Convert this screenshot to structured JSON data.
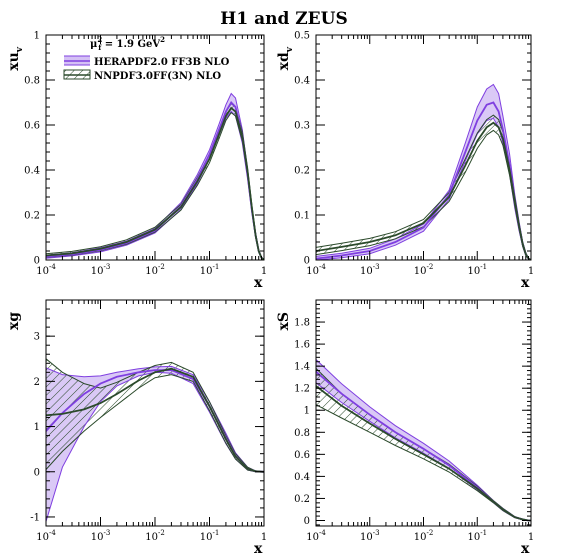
{
  "figure": {
    "title": "H1 and ZEUS",
    "scale_label": "μ",
    "scale_sub": "f",
    "scale_sup": "2",
    "scale_value": " = 1.9 GeV",
    "scale_value_sup": "2",
    "legend": [
      "HERAPDF2.0 FF3B NLO",
      "NNPDF3.0FF(3N) NLO"
    ],
    "colors": {
      "hera_line": "#7f3fe0",
      "hera_fill": "#d4c0f5",
      "nnpdf_line": "#2b4a2b",
      "nnpdf_hatch": "#2b4a2b"
    }
  },
  "chart_data": [
    {
      "type": "line",
      "ylabel": "xu",
      "ylabel_sub": "v",
      "xlabel": "x",
      "xscale": "log",
      "xlim": [
        0.0001,
        1
      ],
      "ylim": [
        0,
        1
      ],
      "xticks": [
        "10",
        "10",
        "10",
        "10",
        "1"
      ],
      "xtick_exps": [
        "-4",
        "-3",
        "-2",
        "-1",
        ""
      ],
      "yticks": [
        "0",
        "0.2",
        "0.4",
        "0.6",
        "0.8",
        "1"
      ],
      "x": [
        0.0001,
        0.0003,
        0.001,
        0.003,
        0.01,
        0.03,
        0.06,
        0.1,
        0.15,
        0.2,
        0.25,
        0.3,
        0.4,
        0.5,
        0.6,
        0.7,
        0.8,
        0.9,
        1.0
      ],
      "series": [
        {
          "name": "HERAPDF2.0 FF3B NLO",
          "center": [
            0.015,
            0.025,
            0.045,
            0.075,
            0.13,
            0.24,
            0.36,
            0.47,
            0.58,
            0.66,
            0.7,
            0.68,
            0.55,
            0.38,
            0.22,
            0.11,
            0.04,
            0.01,
            0.0
          ],
          "lo": [
            0.008,
            0.018,
            0.036,
            0.066,
            0.12,
            0.225,
            0.34,
            0.45,
            0.555,
            0.63,
            0.66,
            0.64,
            0.52,
            0.36,
            0.21,
            0.1,
            0.035,
            0.008,
            0.0
          ],
          "hi": [
            0.022,
            0.032,
            0.054,
            0.084,
            0.14,
            0.255,
            0.38,
            0.49,
            0.605,
            0.69,
            0.74,
            0.72,
            0.58,
            0.4,
            0.235,
            0.12,
            0.045,
            0.012,
            0.0
          ]
        },
        {
          "name": "NNPDF3.0FF(3N) NLO",
          "center": [
            0.02,
            0.03,
            0.05,
            0.08,
            0.135,
            0.235,
            0.35,
            0.45,
            0.56,
            0.64,
            0.675,
            0.66,
            0.55,
            0.39,
            0.23,
            0.11,
            0.04,
            0.01,
            0.0
          ],
          "lo": [
            0.012,
            0.022,
            0.041,
            0.07,
            0.124,
            0.222,
            0.332,
            0.432,
            0.54,
            0.62,
            0.655,
            0.64,
            0.53,
            0.37,
            0.215,
            0.1,
            0.035,
            0.008,
            0.0
          ],
          "hi": [
            0.028,
            0.038,
            0.059,
            0.09,
            0.146,
            0.248,
            0.368,
            0.468,
            0.58,
            0.66,
            0.695,
            0.68,
            0.57,
            0.41,
            0.245,
            0.12,
            0.045,
            0.012,
            0.0
          ]
        }
      ]
    },
    {
      "type": "line",
      "ylabel": "xd",
      "ylabel_sub": "v",
      "xlabel": "x",
      "xscale": "log",
      "xlim": [
        0.0001,
        1
      ],
      "ylim": [
        0,
        0.5
      ],
      "xticks": [
        "10",
        "10",
        "10",
        "10",
        "1"
      ],
      "xtick_exps": [
        "-4",
        "-3",
        "-2",
        "-1",
        ""
      ],
      "yticks": [
        "0",
        "0.1",
        "0.2",
        "0.3",
        "0.4",
        "0.5"
      ],
      "x": [
        0.0001,
        0.0003,
        0.001,
        0.003,
        0.01,
        0.03,
        0.06,
        0.1,
        0.15,
        0.2,
        0.25,
        0.3,
        0.4,
        0.5,
        0.6,
        0.7,
        0.8,
        0.9,
        1.0
      ],
      "series": [
        {
          "name": "HERAPDF2.0 FF3B NLO",
          "center": [
            0.003,
            0.01,
            0.02,
            0.04,
            0.072,
            0.145,
            0.24,
            0.31,
            0.345,
            0.35,
            0.33,
            0.29,
            0.21,
            0.13,
            0.075,
            0.035,
            0.013,
            0.003,
            0.0
          ],
          "lo": [
            0.0,
            0.005,
            0.014,
            0.033,
            0.064,
            0.135,
            0.22,
            0.28,
            0.31,
            0.315,
            0.295,
            0.26,
            0.19,
            0.115,
            0.065,
            0.03,
            0.01,
            0.002,
            0.0
          ],
          "hi": [
            0.008,
            0.015,
            0.026,
            0.047,
            0.08,
            0.155,
            0.26,
            0.34,
            0.38,
            0.39,
            0.37,
            0.32,
            0.235,
            0.145,
            0.085,
            0.04,
            0.016,
            0.004,
            0.0
          ]
        },
        {
          "name": "NNPDF3.0FF(3N) NLO",
          "center": [
            0.02,
            0.029,
            0.04,
            0.055,
            0.082,
            0.14,
            0.21,
            0.265,
            0.295,
            0.305,
            0.295,
            0.27,
            0.2,
            0.13,
            0.075,
            0.035,
            0.013,
            0.003,
            0.0
          ],
          "lo": [
            0.012,
            0.021,
            0.032,
            0.047,
            0.074,
            0.13,
            0.195,
            0.248,
            0.278,
            0.288,
            0.278,
            0.255,
            0.188,
            0.12,
            0.068,
            0.03,
            0.01,
            0.002,
            0.0
          ],
          "hi": [
            0.028,
            0.037,
            0.048,
            0.063,
            0.09,
            0.15,
            0.225,
            0.282,
            0.312,
            0.322,
            0.312,
            0.285,
            0.212,
            0.14,
            0.082,
            0.04,
            0.016,
            0.004,
            0.0
          ]
        }
      ]
    },
    {
      "type": "line",
      "ylabel": "xg",
      "ylabel_sub": "",
      "xlabel": "x",
      "xscale": "log",
      "xlim": [
        0.0001,
        1
      ],
      "ylim": [
        -1.2,
        3.8
      ],
      "xticks": [
        "10",
        "10",
        "10",
        "10",
        "1"
      ],
      "xtick_exps": [
        "-4",
        "-3",
        "-2",
        "-1",
        ""
      ],
      "yticks": [
        "-1",
        "0",
        "1",
        "2",
        "3"
      ],
      "x": [
        0.0001,
        0.0002,
        0.0005,
        0.001,
        0.002,
        0.005,
        0.01,
        0.02,
        0.05,
        0.1,
        0.2,
        0.3,
        0.5,
        0.7,
        1.0
      ],
      "series": [
        {
          "name": "HERAPDF2.0 FF3B NLO",
          "center": [
            0.9,
            1.3,
            1.72,
            1.95,
            2.1,
            2.2,
            2.25,
            2.25,
            2.05,
            1.45,
            0.75,
            0.35,
            0.07,
            0.01,
            0.0
          ],
          "lo": [
            -1.1,
            0.1,
            1.0,
            1.55,
            1.9,
            2.12,
            2.2,
            2.18,
            1.95,
            1.32,
            0.62,
            0.28,
            0.04,
            0.0,
            0.0
          ],
          "hi": [
            2.3,
            2.15,
            2.1,
            2.12,
            2.2,
            2.28,
            2.32,
            2.33,
            2.15,
            1.55,
            0.85,
            0.42,
            0.1,
            0.02,
            0.0
          ]
        },
        {
          "name": "NNPDF3.0FF(3N) NLO",
          "center": [
            1.25,
            1.28,
            1.38,
            1.52,
            1.72,
            2.02,
            2.2,
            2.28,
            2.1,
            1.45,
            0.72,
            0.34,
            0.07,
            0.01,
            0.0
          ],
          "lo": [
            0.05,
            0.45,
            0.9,
            1.2,
            1.48,
            1.85,
            2.08,
            2.15,
            2.0,
            1.35,
            0.63,
            0.28,
            0.04,
            0.0,
            0.0
          ],
          "hi": [
            2.5,
            2.2,
            1.95,
            1.85,
            1.98,
            2.2,
            2.35,
            2.42,
            2.2,
            1.55,
            0.8,
            0.4,
            0.1,
            0.02,
            0.0
          ]
        }
      ]
    },
    {
      "type": "line",
      "ylabel": "xS",
      "ylabel_sub": "",
      "xlabel": "x",
      "xscale": "log",
      "xlim": [
        0.0001,
        1
      ],
      "ylim": [
        -0.05,
        2.0
      ],
      "xticks": [
        "10",
        "10",
        "10",
        "10",
        "1"
      ],
      "xtick_exps": [
        "-4",
        "-3",
        "-2",
        "-1",
        ""
      ],
      "yticks": [
        "0",
        "0.2",
        "0.4",
        "0.6",
        "0.8",
        "1",
        "1.2",
        "1.4",
        "1.6",
        "1.8"
      ],
      "x": [
        0.0001,
        0.0003,
        0.001,
        0.003,
        0.01,
        0.03,
        0.1,
        0.2,
        0.3,
        0.5,
        0.7,
        0.9,
        1.0
      ],
      "series": [
        {
          "name": "HERAPDF2.0 FF3B NLO",
          "center": [
            1.35,
            1.15,
            0.96,
            0.8,
            0.65,
            0.5,
            0.3,
            0.17,
            0.1,
            0.03,
            0.01,
            0.0,
            0.0
          ],
          "lo": [
            1.25,
            1.07,
            0.9,
            0.75,
            0.61,
            0.47,
            0.28,
            0.16,
            0.09,
            0.025,
            0.005,
            0.0,
            0.0
          ],
          "hi": [
            1.46,
            1.24,
            1.03,
            0.86,
            0.7,
            0.54,
            0.32,
            0.18,
            0.11,
            0.035,
            0.012,
            0.0,
            0.0
          ]
        },
        {
          "name": "NNPDF3.0FF(3N) NLO",
          "center": [
            1.22,
            1.04,
            0.88,
            0.74,
            0.6,
            0.47,
            0.29,
            0.17,
            0.1,
            0.03,
            0.01,
            0.0,
            0.0
          ],
          "lo": [
            1.05,
            0.93,
            0.8,
            0.68,
            0.56,
            0.44,
            0.27,
            0.16,
            0.09,
            0.025,
            0.005,
            0.0,
            0.0
          ],
          "hi": [
            1.38,
            1.15,
            0.96,
            0.8,
            0.65,
            0.51,
            0.31,
            0.18,
            0.11,
            0.035,
            0.012,
            0.0,
            0.0
          ]
        }
      ]
    }
  ]
}
